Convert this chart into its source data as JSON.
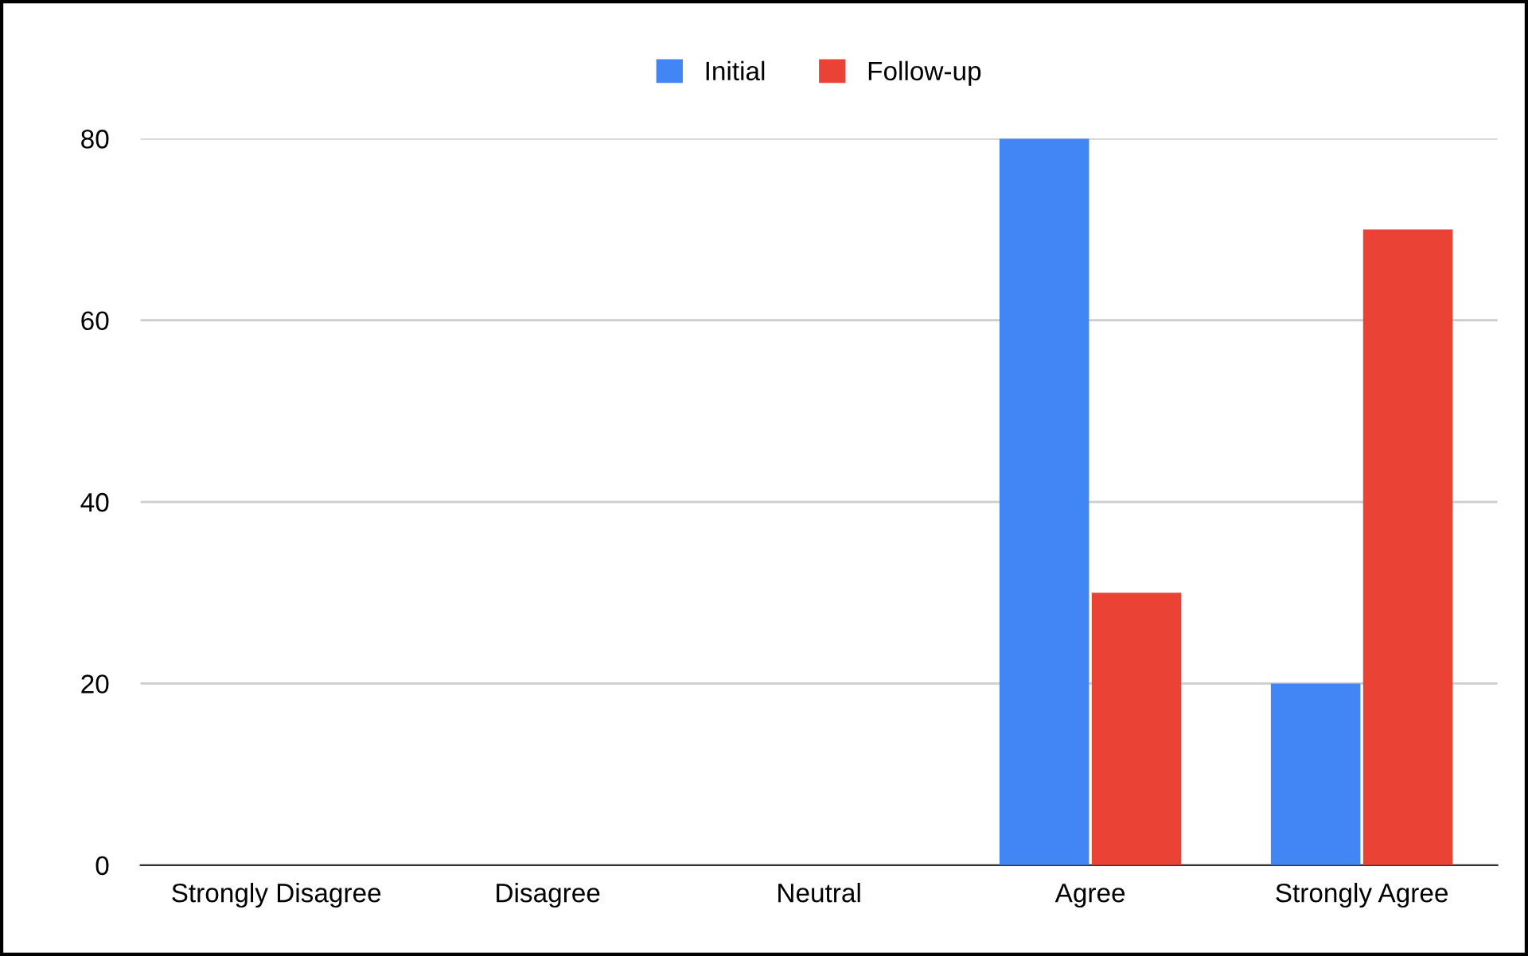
{
  "chart_data": {
    "type": "bar",
    "categories": [
      "Strongly Disagree",
      "Disagree",
      "Neutral",
      "Agree",
      "Strongly Agree"
    ],
    "series": [
      {
        "name": "Initial",
        "color": "#4285f4",
        "values": [
          0,
          0,
          0,
          80,
          20
        ]
      },
      {
        "name": "Follow-up",
        "color": "#ea4335",
        "values": [
          0,
          0,
          0,
          30,
          70
        ]
      }
    ],
    "ylim": [
      0,
      80
    ],
    "yticks": [
      0,
      20,
      40,
      60,
      80
    ],
    "grid": "y",
    "legend": "top"
  }
}
